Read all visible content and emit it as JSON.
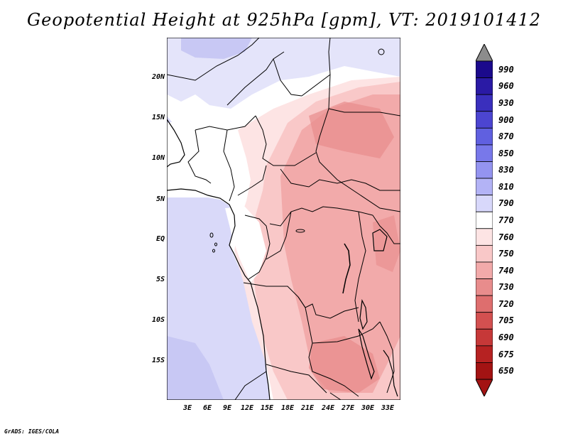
{
  "title": "Geopotential Height at 925hPa [gpm], VT: 2019101412",
  "footer": "GrADS: IGES/COLA",
  "lat_labels": [
    "20N",
    "15N",
    "10N",
    "5N",
    "EQ",
    "5S",
    "10S",
    "15S"
  ],
  "lon_labels": [
    "3E",
    "6E",
    "9E",
    "12E",
    "15E",
    "18E",
    "21E",
    "24E",
    "27E",
    "30E",
    "33E"
  ],
  "colorbar": {
    "labels": [
      "990",
      "960",
      "930",
      "900",
      "870",
      "850",
      "830",
      "810",
      "790",
      "770",
      "760",
      "750",
      "740",
      "730",
      "720",
      "705",
      "690",
      "675",
      "650"
    ],
    "colors": [
      "#1b0a8c",
      "#2a1aa5",
      "#3a2fbd",
      "#4c45d1",
      "#6060e0",
      "#7878ea",
      "#9494f0",
      "#b3b3f6",
      "#d8d8fb",
      "#ffffff",
      "#fde4e4",
      "#f9c8c8",
      "#f2aaaa",
      "#e88c8c",
      "#de6e6e",
      "#d35050",
      "#c63838",
      "#b62222",
      "#a31313"
    ],
    "triangle_top": "#8c8c8c",
    "triangle_bottom": "#a31313"
  },
  "palette": {
    "ocean": "#d9d9f9",
    "ocean_deep": "#c8c8f4",
    "land_white": "#ffffff",
    "land_light": "#fde4e4",
    "land_mid": "#f9c8c8",
    "land_main": "#f2aaaa",
    "land_dark": "#e88c8c",
    "sahara": "#e4e4fa"
  }
}
